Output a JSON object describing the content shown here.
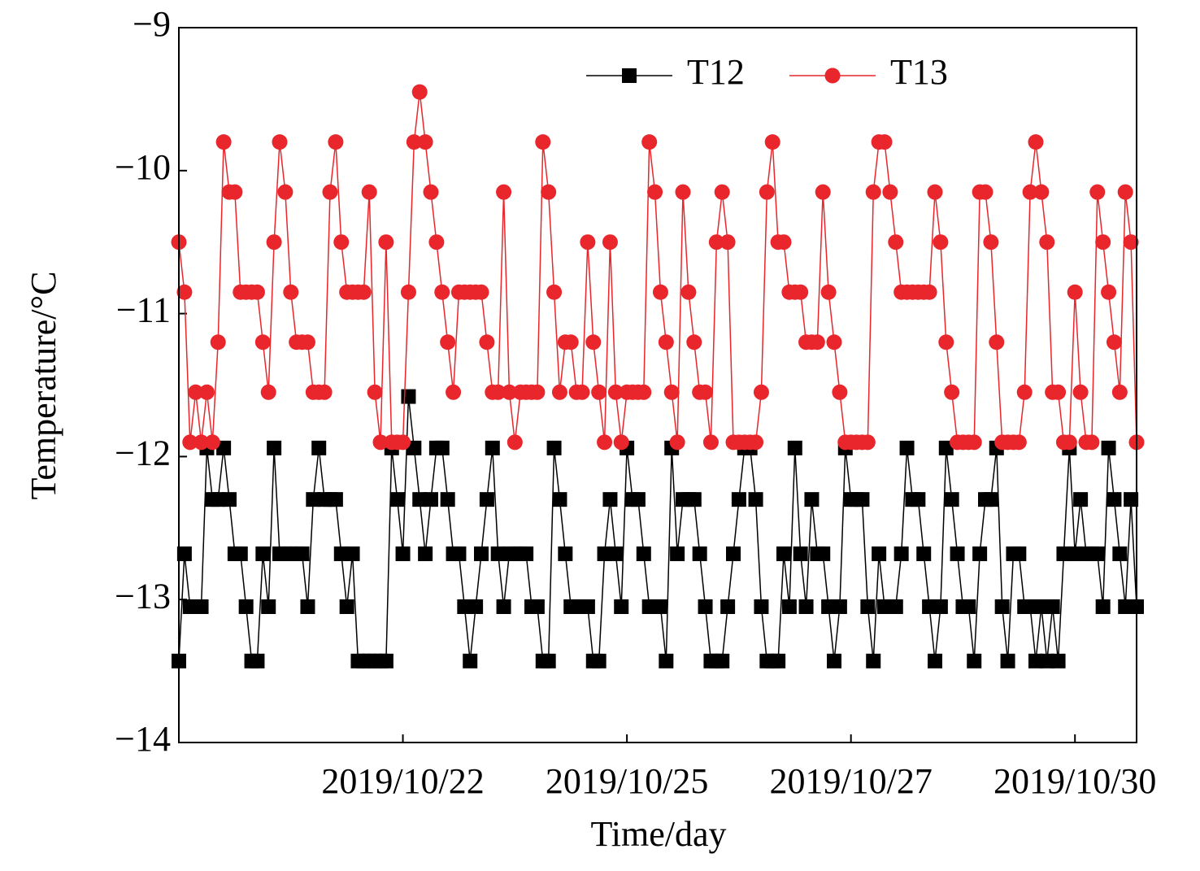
{
  "chart_data": {
    "type": "line",
    "xlabel": "Time/day",
    "ylabel": "Temperature/°C",
    "categories": [
      null,
      null,
      null,
      null,
      null,
      null,
      null,
      null,
      null,
      null,
      null,
      null,
      null,
      null,
      null,
      null,
      null,
      null,
      null,
      null,
      null,
      null,
      null,
      null,
      null,
      null,
      null,
      null,
      null,
      null,
      null,
      null,
      null,
      null,
      null,
      null,
      null,
      null,
      null,
      null,
      "2019/10/22",
      null,
      null,
      null,
      null,
      null,
      null,
      null,
      null,
      null,
      null,
      null,
      null,
      null,
      null,
      null,
      null,
      null,
      null,
      null,
      null,
      null,
      null,
      null,
      null,
      null,
      null,
      null,
      null,
      null,
      null,
      null,
      null,
      null,
      null,
      null,
      null,
      null,
      null,
      null,
      "2019/10/25",
      null,
      null,
      null,
      null,
      null,
      null,
      null,
      null,
      null,
      null,
      null,
      null,
      null,
      null,
      null,
      null,
      null,
      null,
      null,
      null,
      null,
      null,
      null,
      null,
      null,
      null,
      null,
      null,
      null,
      null,
      null,
      null,
      null,
      null,
      null,
      null,
      null,
      null,
      null,
      "2019/10/27",
      null,
      null,
      null,
      null,
      null,
      null,
      null,
      null,
      null,
      null,
      null,
      null,
      null,
      null,
      null,
      null,
      null,
      null,
      null,
      null,
      null,
      null,
      null,
      null,
      null,
      null,
      null,
      null,
      null,
      null,
      null,
      null,
      null,
      null,
      null,
      null,
      null,
      null,
      null,
      "2019/10/30",
      null,
      null,
      null,
      null,
      null,
      null,
      null,
      null,
      null,
      null,
      null
    ],
    "series": [
      {
        "name": "T12",
        "color": "#000000",
        "marker": "square",
        "values": [
          -13.43,
          -12.68,
          -13.05,
          -13.05,
          -13.05,
          -11.94,
          -12.3,
          -12.3,
          -11.94,
          -12.3,
          -12.68,
          -12.68,
          -13.05,
          -13.43,
          -13.43,
          -12.68,
          -13.05,
          -11.94,
          -12.68,
          -12.68,
          -12.68,
          -12.68,
          -12.68,
          -13.05,
          -12.3,
          -11.94,
          -12.3,
          -12.3,
          -12.3,
          -12.68,
          -13.05,
          -12.68,
          -13.43,
          -13.43,
          -13.43,
          -13.43,
          -13.43,
          -13.43,
          -11.94,
          -12.3,
          -12.68,
          -11.58,
          -11.94,
          -12.3,
          -12.68,
          -12.3,
          -11.94,
          -11.94,
          -12.3,
          -12.68,
          -12.68,
          -13.05,
          -13.43,
          -13.05,
          -12.68,
          -12.3,
          -11.94,
          -12.68,
          -13.05,
          -12.68,
          -12.68,
          -12.68,
          -12.68,
          -13.05,
          -13.05,
          -13.43,
          -13.43,
          -11.94,
          -12.3,
          -12.68,
          -13.05,
          -13.05,
          -13.05,
          -13.05,
          -13.43,
          -13.43,
          -12.68,
          -12.3,
          -12.68,
          -13.05,
          -11.94,
          -12.3,
          -12.3,
          -12.68,
          -13.05,
          -13.05,
          -13.05,
          -13.43,
          -11.94,
          -12.68,
          -12.3,
          -12.3,
          -12.3,
          -12.68,
          -13.05,
          -13.43,
          -13.43,
          -13.43,
          -13.05,
          -12.68,
          -12.3,
          -11.94,
          -11.94,
          -12.3,
          -13.05,
          -13.43,
          -13.43,
          -13.43,
          -12.68,
          -13.05,
          -11.94,
          -12.68,
          -13.05,
          -12.3,
          -12.68,
          -12.68,
          -13.05,
          -13.43,
          -13.05,
          -11.94,
          -12.3,
          -12.3,
          -12.3,
          -13.05,
          -13.43,
          -12.68,
          -13.05,
          -13.05,
          -13.05,
          -12.68,
          -11.94,
          -12.3,
          -12.3,
          -12.68,
          -13.05,
          -13.43,
          -13.05,
          -11.94,
          -12.3,
          -12.68,
          -13.05,
          -13.05,
          -13.43,
          -12.68,
          -12.3,
          -12.3,
          -11.94,
          -13.05,
          -13.43,
          -12.68,
          -12.68,
          -13.05,
          -13.05,
          -13.43,
          -13.05,
          -13.43,
          -13.05,
          -13.43,
          -12.68,
          -11.94,
          -12.68,
          -12.3,
          -12.68,
          -12.68,
          -12.68,
          -13.05,
          -11.94,
          -12.3,
          -12.68,
          -13.05,
          -12.3,
          -13.05
        ]
      },
      {
        "name": "T13",
        "color": "#e8262b",
        "marker": "circle",
        "values": [
          -10.5,
          -10.85,
          -11.9,
          -11.55,
          -11.9,
          -11.55,
          -11.9,
          -11.2,
          -9.8,
          -10.15,
          -10.15,
          -10.85,
          -10.85,
          -10.85,
          -10.85,
          -11.2,
          -11.55,
          -10.5,
          -9.8,
          -10.15,
          -10.85,
          -11.2,
          -11.2,
          -11.2,
          -11.55,
          -11.55,
          -11.55,
          -10.15,
          -9.8,
          -10.5,
          -10.85,
          -10.85,
          -10.85,
          -10.85,
          -10.15,
          -11.55,
          -11.9,
          -10.5,
          -11.9,
          -11.9,
          -11.9,
          -10.85,
          -9.8,
          -9.45,
          -9.8,
          -10.15,
          -10.5,
          -10.85,
          -11.2,
          -11.55,
          -10.85,
          -10.85,
          -10.85,
          -10.85,
          -10.85,
          -11.2,
          -11.55,
          -11.55,
          -10.15,
          -11.55,
          -11.9,
          -11.55,
          -11.55,
          -11.55,
          -11.55,
          -9.8,
          -10.15,
          -10.85,
          -11.55,
          -11.2,
          -11.2,
          -11.55,
          -11.55,
          -10.5,
          -11.2,
          -11.55,
          -11.9,
          -10.5,
          -11.55,
          -11.9,
          -11.55,
          -11.55,
          -11.55,
          -11.55,
          -9.8,
          -10.15,
          -10.85,
          -11.2,
          -11.55,
          -11.9,
          -10.15,
          -10.85,
          -11.2,
          -11.55,
          -11.55,
          -11.9,
          -10.5,
          -10.15,
          -10.5,
          -11.9,
          -11.9,
          -11.9,
          -11.9,
          -11.9,
          -11.55,
          -10.15,
          -9.8,
          -10.5,
          -10.5,
          -10.85,
          -10.85,
          -10.85,
          -11.2,
          -11.2,
          -11.2,
          -10.15,
          -10.85,
          -11.2,
          -11.55,
          -11.9,
          -11.9,
          -11.9,
          -11.9,
          -11.9,
          -10.15,
          -9.8,
          -9.8,
          -10.15,
          -10.5,
          -10.85,
          -10.85,
          -10.85,
          -10.85,
          -10.85,
          -10.85,
          -10.15,
          -10.5,
          -11.2,
          -11.55,
          -11.9,
          -11.9,
          -11.9,
          -11.9,
          -10.15,
          -10.15,
          -10.5,
          -11.2,
          -11.9,
          -11.9,
          -11.9,
          -11.9,
          -11.55,
          -10.15,
          -9.8,
          -10.15,
          -10.5,
          -11.55,
          -11.55,
          -11.9,
          -11.9,
          -10.85,
          -11.55,
          -11.9,
          -11.9,
          -10.15,
          -10.5,
          -10.85,
          -11.2,
          -11.55,
          -10.15,
          -10.5,
          -11.9
        ]
      }
    ],
    "ylim": [
      -14,
      -9
    ],
    "yticks": [
      {
        "value": -14,
        "label": "−14"
      },
      {
        "value": -13,
        "label": "−13"
      },
      {
        "value": -12,
        "label": "−12"
      },
      {
        "value": -11,
        "label": "−11"
      },
      {
        "value": -10,
        "label": "−10"
      },
      {
        "value": -9,
        "label": "−9"
      }
    ],
    "legend": "upper center",
    "grid": false
  }
}
